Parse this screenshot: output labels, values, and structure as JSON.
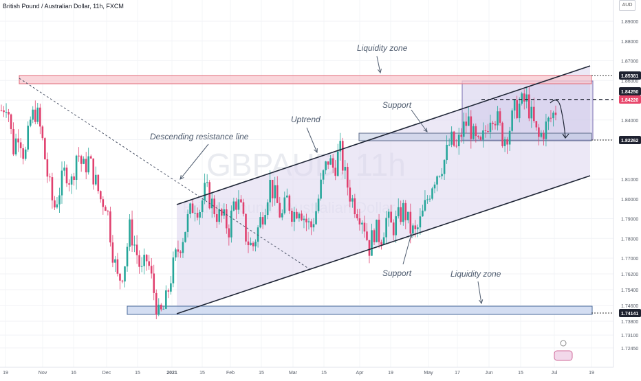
{
  "header": {
    "symbol_line": "British Pound / Australian Dollar, 11h, FXCM"
  },
  "currency_tag": "AUD",
  "watermark": {
    "main": "GBPAUD, 11h",
    "sub": "British Pound / Australian Dollar"
  },
  "colors": {
    "up": "#26a69a",
    "down": "#e0406e",
    "channel_fill": "#dcd6ef",
    "liq_top": "#f8c8cf",
    "liq_bottom": "#c9d6ef",
    "label_text": "#4e5b6e",
    "price_tag": "#1e2230",
    "current_tag": "#e8476b"
  },
  "annotations": {
    "liquidity_top": "Liquidity zone",
    "liquidity_bottom": "Liquidity zone",
    "support_top": "Support",
    "support_bottom": "Support",
    "uptrend": "Uptrend",
    "descending": "Descending resistance line"
  },
  "chart_data": {
    "type": "candlestick",
    "title": "British Pound / Australian Dollar, 11h, FXCM",
    "ylim": [
      1.715,
      1.895
    ],
    "y_ticks": [
      "1.89000",
      "1.88000",
      "1.87000",
      "1.86000",
      "1.85000",
      "1.84000",
      "1.83000",
      "1.81000",
      "1.80000",
      "1.79000",
      "1.78000",
      "1.77000",
      "1.76200",
      "1.75400",
      "1.74600",
      "1.73800",
      "1.73100",
      "1.72450"
    ],
    "x_ticks": [
      "19",
      "Nov",
      "16",
      "Dec",
      "15",
      "2021",
      "15",
      "Feb",
      "15",
      "Mar",
      "15",
      "Apr",
      "19",
      "May",
      "17",
      "Jun",
      "15",
      "Jul",
      "19"
    ],
    "price_labels": [
      {
        "value": "1.85381",
        "style": "plain"
      },
      {
        "value": "1.84250",
        "style": "plain"
      },
      {
        "value": "1.84220",
        "style": "current"
      },
      {
        "value": "1.82262",
        "style": "plain"
      },
      {
        "value": "1.74141",
        "style": "plain"
      }
    ],
    "candles_close_path": [
      1.845,
      1.85,
      1.825,
      1.835,
      1.82,
      1.84,
      1.845,
      1.83,
      1.81,
      1.795,
      1.805,
      1.815,
      1.808,
      1.825,
      1.815,
      1.82,
      1.81,
      1.8,
      1.798,
      1.775,
      1.758,
      1.765,
      1.785,
      1.775,
      1.762,
      1.77,
      1.755,
      1.74,
      1.745,
      1.76,
      1.772,
      1.78,
      1.79,
      1.798,
      1.795,
      1.805,
      1.798,
      1.792,
      1.79,
      1.785,
      1.8,
      1.795,
      1.78,
      1.775,
      1.785,
      1.795,
      1.808,
      1.8,
      1.79,
      1.8,
      1.792,
      1.797,
      1.79,
      1.785,
      1.795,
      1.81,
      1.82,
      1.815,
      1.825,
      1.81,
      1.8,
      1.795,
      1.79,
      1.775,
      1.785,
      1.78,
      1.79,
      1.785,
      1.79,
      1.795,
      1.785,
      1.782,
      1.79,
      1.8,
      1.81,
      1.815,
      1.82,
      1.83,
      1.825,
      1.835,
      1.84,
      1.83,
      1.825,
      1.835,
      1.845,
      1.84,
      1.83,
      1.835,
      1.845,
      1.848,
      1.85,
      1.84,
      1.83,
      1.835,
      1.84,
      1.845
    ]
  }
}
